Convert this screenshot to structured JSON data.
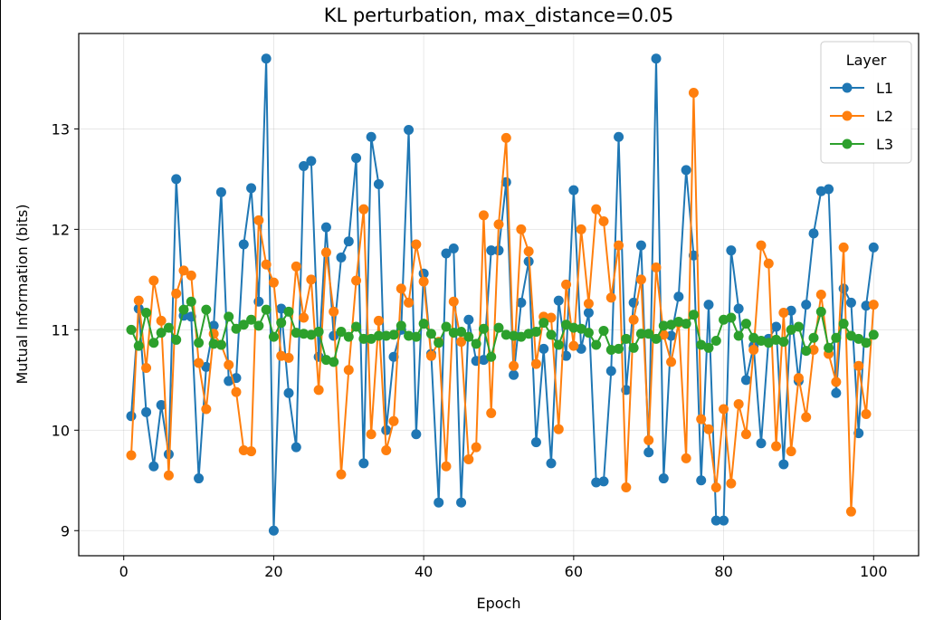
{
  "chart_data": {
    "type": "line",
    "title": "KL perturbation, max_distance=0.05",
    "xlabel": "Epoch",
    "ylabel": "Mutual Information (bits)",
    "xlim": [
      -6,
      106
    ],
    "ylim": [
      8.75,
      13.95
    ],
    "xticks": [
      0,
      20,
      40,
      60,
      80,
      100
    ],
    "yticks": [
      9,
      10,
      11,
      12,
      13
    ],
    "grid": true,
    "legend": {
      "title": "Layer",
      "placement": "top-right"
    },
    "x": [
      1,
      2,
      3,
      4,
      5,
      6,
      7,
      8,
      9,
      10,
      11,
      12,
      13,
      14,
      15,
      16,
      17,
      18,
      19,
      20,
      21,
      22,
      23,
      24,
      25,
      26,
      27,
      28,
      29,
      30,
      31,
      32,
      33,
      34,
      35,
      36,
      37,
      38,
      39,
      40,
      41,
      42,
      43,
      44,
      45,
      46,
      47,
      48,
      49,
      50,
      51,
      52,
      53,
      54,
      55,
      56,
      57,
      58,
      59,
      60,
      61,
      62,
      63,
      64,
      65,
      66,
      67,
      68,
      69,
      70,
      71,
      72,
      73,
      74,
      75,
      76,
      77,
      78,
      79,
      80,
      81,
      82,
      83,
      84,
      85,
      86,
      87,
      88,
      89,
      90,
      91,
      92,
      93,
      94,
      95,
      96,
      97,
      98,
      99,
      100
    ],
    "series": [
      {
        "name": "L1",
        "color": "#1f77b4",
        "values": [
          10.14,
          11.21,
          10.18,
          9.64,
          10.25,
          9.76,
          12.5,
          11.14,
          11.13,
          9.52,
          10.63,
          11.04,
          12.37,
          10.49,
          10.52,
          11.85,
          12.41,
          11.28,
          13.7,
          9.0,
          11.21,
          10.37,
          9.83,
          12.63,
          12.68,
          10.73,
          12.02,
          10.94,
          11.72,
          11.88,
          12.71,
          9.67,
          12.92,
          12.45,
          10.0,
          10.73,
          11.0,
          12.99,
          9.96,
          11.56,
          10.76,
          9.28,
          11.76,
          11.81,
          9.28,
          11.1,
          10.69,
          10.7,
          11.79,
          11.79,
          12.47,
          10.55,
          11.27,
          11.68,
          9.88,
          10.81,
          9.67,
          11.29,
          10.74,
          12.39,
          10.81,
          11.17,
          9.48,
          9.49,
          10.59,
          12.92,
          10.4,
          11.27,
          11.84,
          9.78,
          13.7,
          9.52,
          10.94,
          11.33,
          12.59,
          11.74,
          9.5,
          11.25,
          9.1,
          9.1,
          11.79,
          11.21,
          10.5,
          10.84,
          9.87,
          10.91,
          11.03,
          9.66,
          11.19,
          10.49,
          11.25,
          11.96,
          12.38,
          12.4,
          10.37,
          11.41,
          11.27,
          9.97,
          11.24,
          11.82
        ]
      },
      {
        "name": "L2",
        "color": "#ff7f0e",
        "values": [
          9.75,
          11.29,
          10.62,
          11.49,
          11.09,
          9.55,
          11.36,
          11.59,
          11.54,
          10.67,
          10.21,
          10.96,
          10.85,
          10.65,
          10.38,
          9.8,
          9.79,
          12.09,
          11.65,
          11.47,
          10.74,
          10.72,
          11.63,
          11.12,
          11.5,
          10.4,
          11.77,
          11.18,
          9.56,
          10.6,
          11.49,
          12.2,
          9.96,
          11.09,
          9.8,
          10.09,
          11.41,
          11.27,
          11.85,
          11.48,
          10.74,
          10.88,
          9.64,
          11.28,
          10.88,
          9.71,
          9.83,
          12.14,
          10.17,
          12.05,
          12.91,
          10.64,
          12.0,
          11.78,
          10.66,
          11.13,
          11.12,
          10.01,
          11.45,
          10.84,
          12.0,
          11.26,
          12.2,
          12.08,
          11.32,
          11.84,
          9.43,
          11.1,
          11.5,
          9.9,
          11.62,
          10.95,
          10.68,
          11.07,
          9.72,
          13.36,
          10.11,
          10.01,
          9.43,
          10.21,
          9.47,
          10.26,
          9.96,
          10.8,
          11.84,
          11.66,
          9.84,
          11.17,
          9.79,
          10.52,
          10.13,
          10.8,
          11.35,
          10.76,
          10.48,
          11.82,
          9.19,
          10.64,
          10.16,
          11.25
        ]
      },
      {
        "name": "L3",
        "color": "#2ca02c",
        "values": [
          11.0,
          10.84,
          11.17,
          10.87,
          10.97,
          11.02,
          10.9,
          11.2,
          11.28,
          10.87,
          11.2,
          10.86,
          10.85,
          11.13,
          11.01,
          11.05,
          11.1,
          11.04,
          11.2,
          10.93,
          11.07,
          11.18,
          10.97,
          10.96,
          10.95,
          10.98,
          10.7,
          10.68,
          10.98,
          10.93,
          11.03,
          10.91,
          10.91,
          10.94,
          10.94,
          10.95,
          11.04,
          10.94,
          10.93,
          11.06,
          10.96,
          10.87,
          11.03,
          10.97,
          10.98,
          10.93,
          10.86,
          11.01,
          10.73,
          11.02,
          10.95,
          10.94,
          10.93,
          10.96,
          10.98,
          11.07,
          10.95,
          10.85,
          11.05,
          11.02,
          11.01,
          10.97,
          10.85,
          10.99,
          10.8,
          10.81,
          10.91,
          10.82,
          10.96,
          10.96,
          10.91,
          11.04,
          11.05,
          11.08,
          11.06,
          11.15,
          10.85,
          10.82,
          10.89,
          11.1,
          11.12,
          10.94,
          11.06,
          10.92,
          10.89,
          10.87,
          10.9,
          10.88,
          11.0,
          11.03,
          10.79,
          10.92,
          11.18,
          10.82,
          10.92,
          11.06,
          10.94,
          10.91,
          10.87,
          10.95
        ]
      }
    ]
  }
}
